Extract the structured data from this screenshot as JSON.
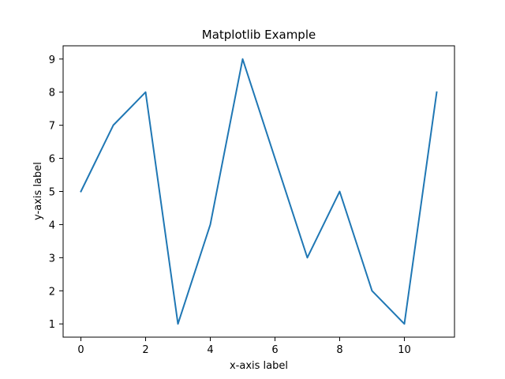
{
  "chart_data": {
    "type": "line",
    "title": "Matplotlib Example",
    "xlabel": "x-axis label",
    "ylabel": "y-axis label",
    "x": [
      0,
      1,
      2,
      3,
      4,
      5,
      6,
      7,
      8,
      9,
      10,
      11
    ],
    "series": [
      {
        "values": [
          5,
          7,
          8,
          1,
          4,
          9,
          6,
          3,
          5,
          2,
          1,
          8
        ],
        "color": "#1f77b4"
      }
    ],
    "xlim": [
      -0.55,
      11.55
    ],
    "ylim": [
      0.6,
      9.4
    ],
    "xticks": [
      0,
      2,
      4,
      6,
      8,
      10
    ],
    "yticks": [
      1,
      2,
      3,
      4,
      5,
      6,
      7,
      8,
      9
    ],
    "grid": false,
    "legend": false
  }
}
